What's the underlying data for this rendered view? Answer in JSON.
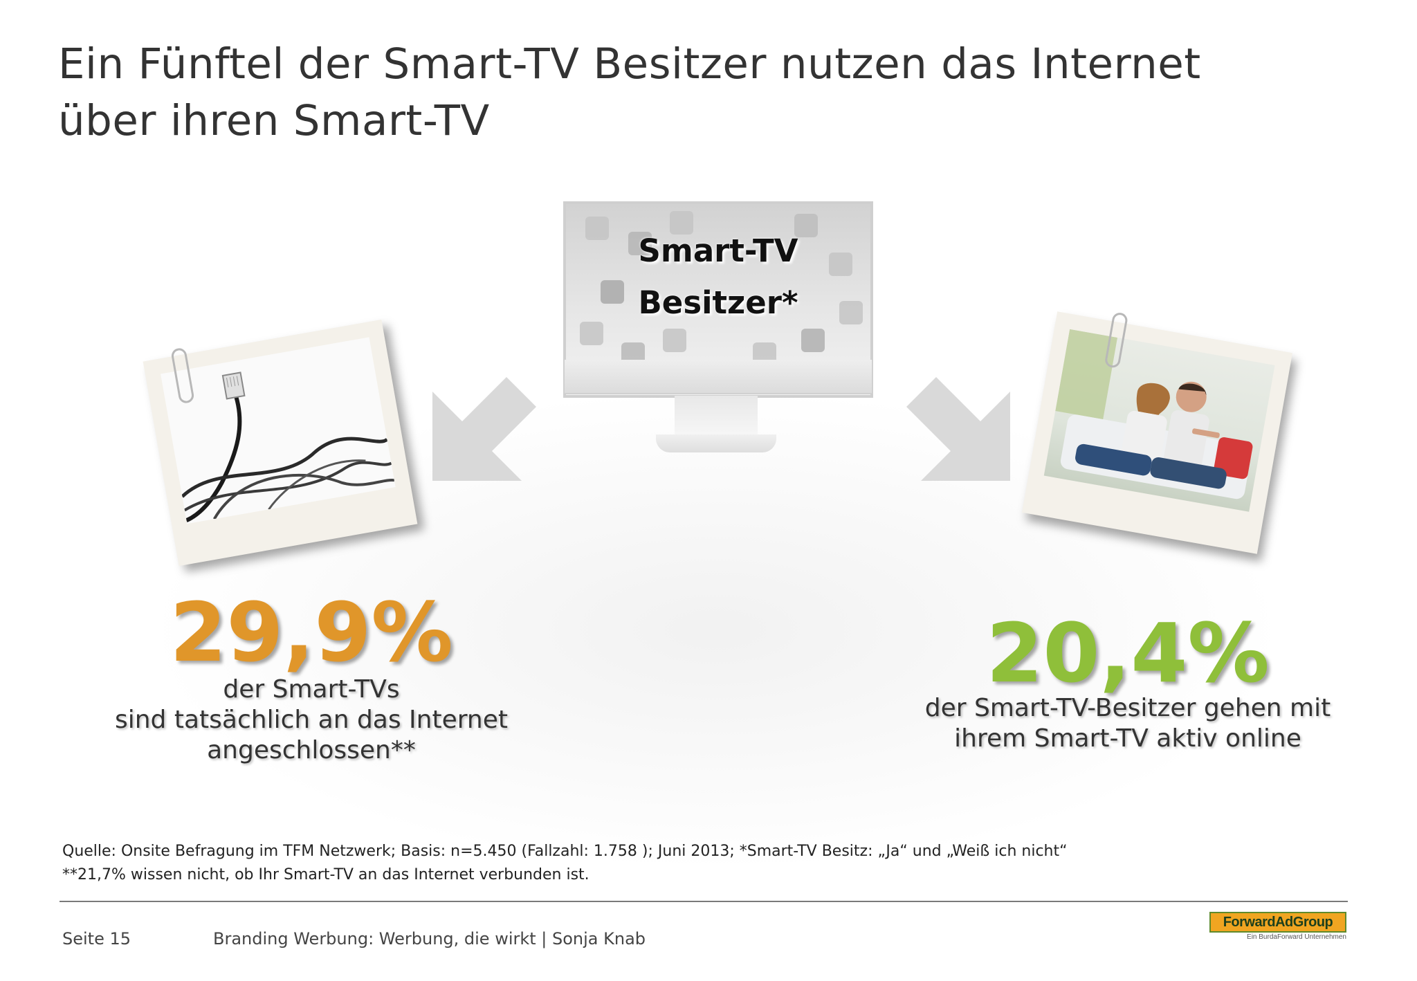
{
  "title": {
    "line1": "Ein Fünftel der Smart-TV Besitzer nutzen das Internet",
    "line2": "über ihren Smart-TV"
  },
  "center": {
    "label_line1": "Smart-TV",
    "label_line2": "Besitzer*"
  },
  "left_stat": {
    "value": "29,9%",
    "line1": "der Smart-TVs",
    "line2": "sind tatsächlich an das Internet",
    "line3": "angeschlossen**",
    "color": "#e0962a"
  },
  "right_stat": {
    "value": "20,4%",
    "line1": "der Smart-TV-Besitzer gehen mit",
    "line2": "ihrem Smart-TV aktiv online",
    "color": "#8fbf3a"
  },
  "source": {
    "line1": "Quelle: Onsite Befragung im TFM Netzwerk; Basis: n=5.450 (Fallzahl: 1.758 ); Juni 2013; *Smart-TV Besitz: „Ja“ und „Weiß ich nicht“",
    "line2": "**21,7% wissen nicht, ob Ihr Smart-TV an das Internet verbunden ist."
  },
  "footer": {
    "page": "Seite 15",
    "info": "Branding Werbung: Werbung, die wirkt | Sonja Knab"
  },
  "logo": {
    "name": "ForwardAdGroup",
    "tagline": "Ein BurdaForward Unternehmen"
  },
  "icons": {
    "left_photo": "network-cable-photo",
    "right_photo": "couple-watching-tv-photo",
    "center": "smart-tv-icon",
    "arrows": "arrow-down-left-icon, arrow-down-right-icon"
  }
}
